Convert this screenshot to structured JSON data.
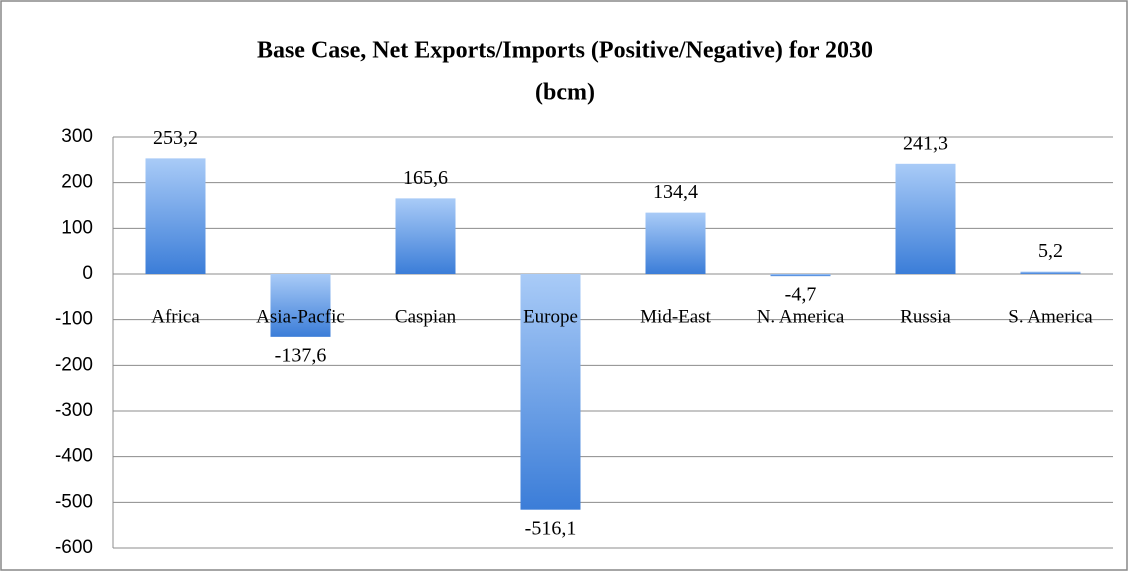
{
  "chart_data": {
    "type": "bar",
    "title": [
      "Base Case, Net Exports/Imports (Positive/Negative) for 2030",
      "(bcm)"
    ],
    "categories": [
      "Africa",
      "Asia-Pacfic",
      "Caspian",
      "Europe",
      "Mid-East",
      "N. America",
      "Russia",
      "S. America"
    ],
    "values": [
      253.2,
      -137.6,
      165.6,
      -516.1,
      134.4,
      -4.7,
      241.3,
      5.2
    ],
    "value_labels": [
      "253,2",
      "-137,6",
      "165,6",
      "-516,1",
      "134,4",
      "-4,7",
      "241,3",
      "5,2"
    ],
    "color": "#3b7dd8",
    "ylim": [
      -600,
      300
    ],
    "yticks": [
      -600,
      -500,
      -400,
      -300,
      -200,
      -100,
      0,
      100,
      200,
      300
    ],
    "grid": true
  }
}
